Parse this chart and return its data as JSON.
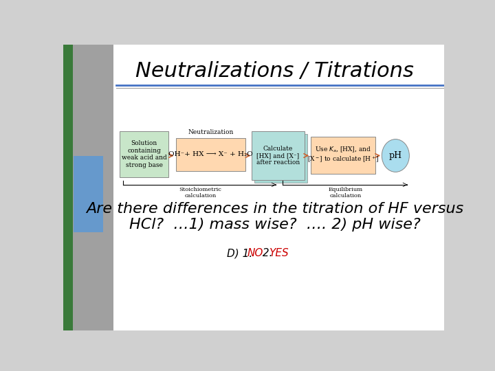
{
  "title": "Neutralizations / Titrations",
  "title_fontsize": 22,
  "title_style": "italic",
  "title_font": "Times New Roman",
  "bg_color": "#d0d0d0",
  "slide_bg": "#ffffff",
  "left_bar1_color": "#3a7a3a",
  "left_bar2_color": "#6699cc",
  "left_bar3_color": "#808080",
  "question_line1": "Are there differences in the titration of HF versus",
  "question_line2": "HCl?  …1) mass wise?  …. 2) pH wise?",
  "answer_prefix": "D) 1.",
  "answer_no": "NO",
  "answer_mid": " 2.",
  "answer_yes": "YES",
  "answer_color_no": "#cc0000",
  "answer_color_yes": "#cc0000",
  "answer_fontsize": 11,
  "question_fontsize": 16,
  "box1_text": "Solution\ncontaining\nweak acid and\nstrong base",
  "box1_color": "#c8e6c9",
  "box1_border": "#888888",
  "box2_text": "OH⁻+ HX ⟶ X⁻ + H₂O",
  "box2_color": "#ffd8b0",
  "box2_border": "#888888",
  "box2_label": "Neutralization",
  "box3_text": "Calculate\n[HX] and [X⁻]\nafter reaction",
  "box3_color": "#b2dfdb",
  "box3_border": "#888888",
  "box4_text": "Use Ka, [HX], and\n[X⁻] to calculate [H⁺]",
  "box4_color": "#ffd8b0",
  "box4_border": "#888888",
  "box5_text": "pH",
  "box5_color": "#aaddee",
  "box5_border": "#888888",
  "stoich_label": "Stoichiometric\ncalculation",
  "equil_label": "Equilibrium\ncalculation",
  "arrow_color": "#cc6633",
  "header_line_color": "#4472c4",
  "header_line2_color": "#a0a0a0"
}
